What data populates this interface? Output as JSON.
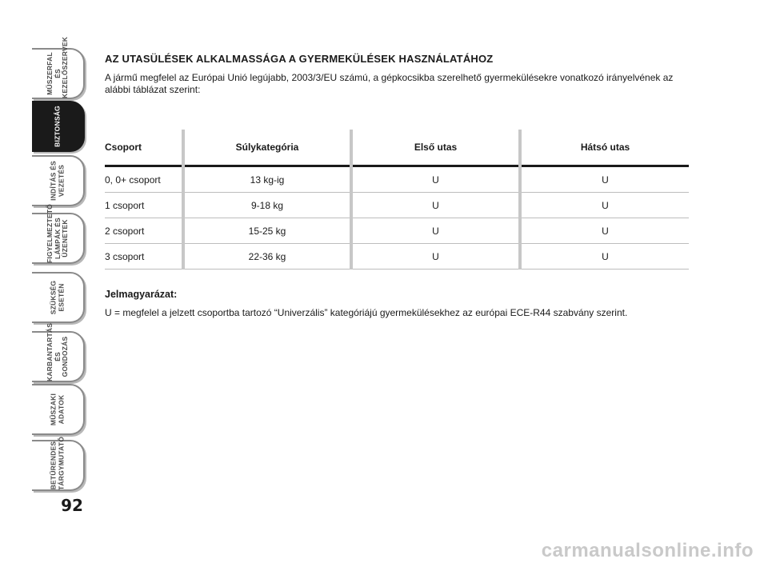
{
  "sidebar": {
    "tabs": [
      {
        "label": "MŰSZERFAL ÉS\nKEZELŐSZERVEK"
      },
      {
        "label": "BIZTONSÁG"
      },
      {
        "label": "INDÍTÁS ÉS\nVEZETÉS"
      },
      {
        "label": "FIGYELMEZTETŐ\nLÁMPÁK ÉS\nÜZENETEK"
      },
      {
        "label": "SZÜKSÉG\nESETÉN"
      },
      {
        "label": "KARBANTARTÁS\nÉS GONDOZÁS"
      },
      {
        "label": "MŰSZAKI\nADATOK"
      },
      {
        "label": "BETŰRENDES\nTÁRGYMUTATÓ"
      }
    ],
    "active_index": 1
  },
  "page_number": "92",
  "main": {
    "title": "AZ UTASÜLÉSEK ALKALMASSÁGA A GYERMEKÜLÉSEK HASZNÁLATÁHOZ",
    "intro": "A jármű megfelel az Európai Unió legújabb, 2003/3/EU számú, a gépkocsikba szerelhető gyermekülésekre vonatkozó irányelvének az alábbi táblázat szerint:",
    "table": {
      "headers": [
        "Csoport",
        "Súlykategória",
        "Első utas",
        "Hátsó utas"
      ],
      "rows": [
        [
          "0, 0+ csoport",
          "13 kg-ig",
          "U",
          "U"
        ],
        [
          "1 csoport",
          "9-18 kg",
          "U",
          "U"
        ],
        [
          "2 csoport",
          "15-25 kg",
          "U",
          "U"
        ],
        [
          "3 csoport",
          "22-36 kg",
          "U",
          "U"
        ]
      ]
    },
    "legend_title": "Jelmagyarázat:",
    "legend_text": "U = megfelel a jelzett csoportba tartozó “Univerzális” kategóriájú gyermekülésekhez az európai ECE-R44 szabvány szerint."
  },
  "watermark": "carmanualsonline.info"
}
